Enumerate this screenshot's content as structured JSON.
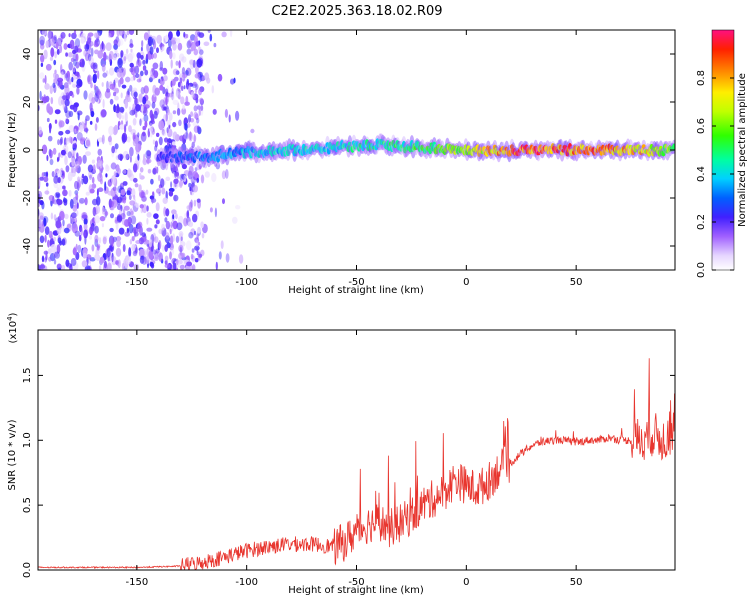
{
  "title": "C2E2.2025.363.18.02.R09",
  "chart_data": [
    {
      "type": "heatmap",
      "name": "spectrogram",
      "xlabel": "Height of straight line (km)",
      "ylabel": "Frequency (Hz)",
      "xlim": [
        -195,
        95
      ],
      "ylim": [
        -50,
        50
      ],
      "x_ticks": [
        "-150",
        "-100",
        "-50",
        "0",
        "50"
      ],
      "y_ticks": [
        "-40",
        "-20",
        "0",
        "20",
        "40"
      ],
      "colorbar": {
        "label": "Normalized spectral amplitude",
        "range": [
          0,
          1
        ],
        "ticks": [
          "0.0",
          "0.2",
          "0.4",
          "0.6",
          "0.8"
        ]
      },
      "signal_track": {
        "x": [
          -140,
          -120,
          -100,
          -80,
          -60,
          -40,
          -20,
          0,
          20,
          40,
          60,
          80,
          95
        ],
        "amplitude": [
          0.25,
          0.35,
          0.4,
          0.45,
          0.45,
          0.5,
          0.55,
          0.7,
          0.95,
          0.95,
          0.9,
          0.8,
          0.6
        ],
        "frequency": [
          -3,
          -3,
          -1,
          0,
          1,
          2,
          1,
          0,
          0,
          0,
          0,
          0,
          0
        ]
      }
    },
    {
      "type": "line",
      "name": "snr",
      "xlabel": "Height of straight line (km)",
      "ylabel": "SNR (10 * v/v)",
      "multiplier": "(x10",
      "multiplier_exp": "4",
      "xlim": [
        -195,
        95
      ],
      "ylim": [
        0,
        1.85
      ],
      "x_ticks": [
        "-150",
        "-100",
        "-50",
        "0",
        "50"
      ],
      "y_ticks": [
        "0.0",
        "0.5",
        "1.0",
        "1.5"
      ],
      "color": "#e8352e",
      "series": [
        {
          "name": "SNR",
          "x": [
            -195,
            -175,
            -150,
            -130,
            -120,
            -110,
            -100,
            -90,
            -80,
            -70,
            -60,
            -55,
            -50,
            -45,
            -40,
            -35,
            -30,
            -25,
            -20,
            -15,
            -10,
            -5,
            0,
            5,
            10,
            15,
            20,
            25,
            30,
            35,
            40,
            45,
            50,
            55,
            60,
            65,
            70,
            75,
            80,
            85,
            90,
            95
          ],
          "y": [
            0.02,
            0.02,
            0.02,
            0.03,
            0.06,
            0.1,
            0.15,
            0.18,
            0.2,
            0.2,
            0.18,
            0.22,
            0.3,
            0.35,
            0.38,
            0.32,
            0.36,
            0.42,
            0.5,
            0.55,
            0.6,
            0.7,
            0.65,
            0.62,
            0.68,
            0.78,
            0.82,
            0.9,
            0.96,
            0.99,
            1.0,
            1.0,
            0.98,
            1.0,
            1.0,
            1.02,
            1.0,
            1.0,
            1.01,
            1.05,
            1.0,
            1.1
          ]
        }
      ]
    }
  ]
}
